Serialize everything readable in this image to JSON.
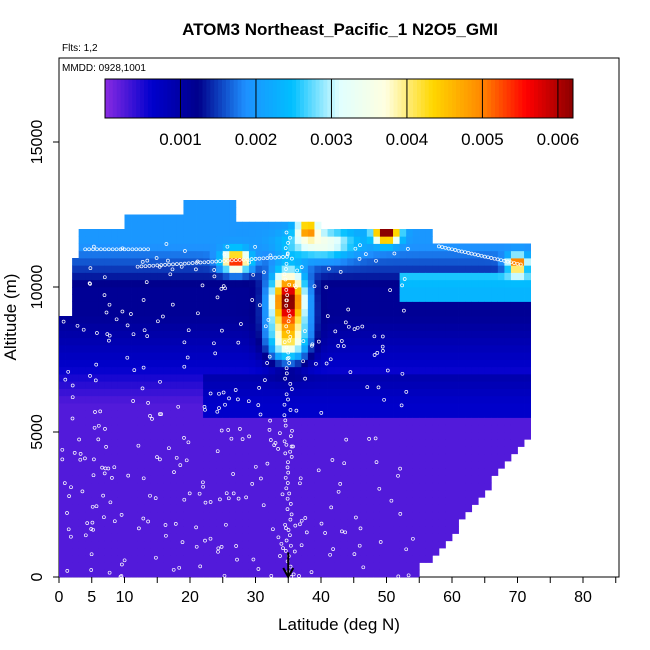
{
  "chart_data": {
    "type": "heatmap",
    "title": "ATOM3 Northeast_Pacific_1 N2O5_GMI",
    "flights_label": "Flts: 1,2",
    "date_label": "MMDD: 0928,1001",
    "xlabel": "Latitude (deg N)",
    "ylabel": "Altitude (m)",
    "xlim": [
      0,
      85
    ],
    "ylim": [
      0,
      17500
    ],
    "x_ticks": [
      0,
      5,
      10,
      20,
      30,
      40,
      50,
      60,
      70,
      80
    ],
    "y_ticks": [
      0,
      5000,
      10000,
      15000
    ],
    "colorbar": {
      "range": [
        0,
        0.0062
      ],
      "ticks": [
        "0.001",
        "0.002",
        "0.003",
        "0.004",
        "0.005",
        "0.006"
      ],
      "tick_values": [
        0.001,
        0.002,
        0.003,
        0.004,
        0.005,
        0.006
      ],
      "colors": [
        "#8a2be2",
        "#0000cd",
        "#00008b",
        "#1e90ff",
        "#00bfff",
        "#e0ffff",
        "#ffffe0",
        "#ffd700",
        "#ff8c00",
        "#ff0000",
        "#8b0000"
      ]
    },
    "latitude_bins": [
      0.5,
      2.5,
      5,
      7.5,
      10,
      12.5,
      15,
      17.5,
      20,
      22.5,
      25,
      27.5,
      30,
      32.5,
      35,
      37.5,
      40,
      42.5,
      45,
      47.5,
      50,
      52.5,
      55,
      57.5,
      60,
      62.5,
      65,
      67.5,
      70,
      72.5
    ],
    "altitude_bins": [
      250,
      750,
      1250,
      1750,
      2250,
      2750,
      3250,
      3750,
      4250,
      4750,
      5250,
      5750,
      6250,
      6750,
      7250,
      7750,
      8250,
      8750,
      9250,
      9750,
      10250,
      10750,
      11250,
      11750,
      12250,
      12750
    ],
    "description": "N2O5 curtain; low values (<0.0005) below ~7 km, 0.001-0.002 aloft, peaks ~0.005-0.006 near 33-38 N at 9-10 km and 45-52 N at 11-12 km",
    "arrow_latitude": 35
  }
}
